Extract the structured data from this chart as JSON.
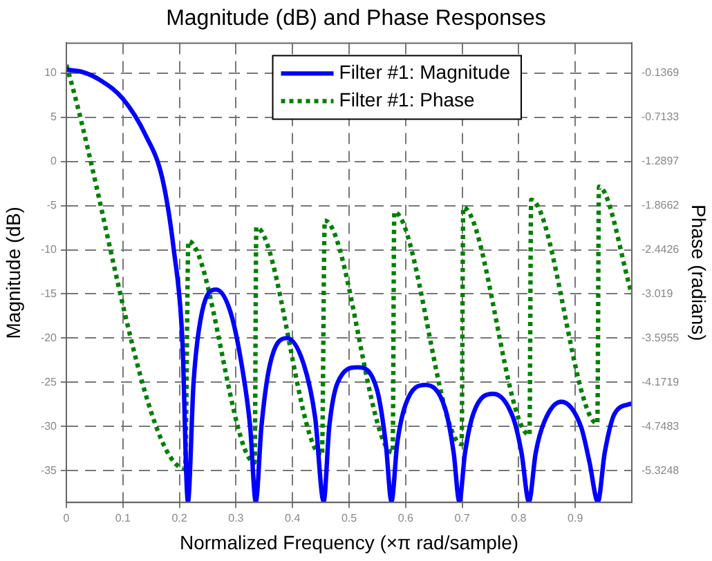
{
  "chart_data": {
    "type": "line",
    "title": "Magnitude (dB) and Phase Responses",
    "xlabel": "Normalized Frequency (×π rad/sample)",
    "ylabel": "Magnitude (dB)",
    "y2label": "Phase (radians)",
    "xlim": [
      0,
      1
    ],
    "xticks": [
      0,
      0.1,
      0.2,
      0.3,
      0.4,
      0.5,
      0.6,
      0.7,
      0.8,
      0.9
    ],
    "ylim": [
      -38.6,
      13.4
    ],
    "yticks": [
      -35,
      -30,
      -25,
      -20,
      -15,
      -10,
      -5,
      0,
      5,
      10
    ],
    "y2lim": [
      -5.74,
      0.255
    ],
    "y2ticks": [
      -5.3248,
      -4.7483,
      -4.1719,
      -3.5955,
      -3.019,
      -2.4426,
      -1.8662,
      -1.2897,
      -0.7133,
      -0.1369
    ],
    "grid": true,
    "legend": "top right",
    "marker": "none",
    "series": [
      {
        "name": "Filter #1: Magnitude",
        "color": "#0000ff",
        "line_style": "solid",
        "x": [
          0,
          0.03,
          0.06,
          0.1,
          0.14,
          0.17,
          0.19,
          0.205,
          0.215,
          0.225,
          0.24,
          0.265,
          0.29,
          0.31,
          0.325,
          0.335,
          0.345,
          0.36,
          0.39,
          0.42,
          0.44,
          0.455,
          0.465,
          0.48,
          0.515,
          0.55,
          0.565,
          0.575,
          0.585,
          0.6,
          0.635,
          0.67,
          0.685,
          0.695,
          0.705,
          0.72,
          0.755,
          0.79,
          0.805,
          0.818,
          0.83,
          0.845,
          0.875,
          0.91,
          0.925,
          0.94,
          0.952,
          0.97,
          1
        ],
        "values": [
          10.4,
          10.1,
          9.2,
          7.1,
          3,
          -2,
          -10,
          -20,
          -38.5,
          -25,
          -17,
          -14.5,
          -17,
          -23,
          -30,
          -38.5,
          -30,
          -23,
          -20,
          -23,
          -29,
          -38.5,
          -30,
          -25,
          -23.3,
          -26,
          -32,
          -38.5,
          -32,
          -27.5,
          -25.3,
          -28,
          -33,
          -38.5,
          -33,
          -28.5,
          -26.3,
          -29,
          -33,
          -38.5,
          -33,
          -29.5,
          -27.2,
          -30,
          -34,
          -38.5,
          -33,
          -28.5,
          -27.4
        ]
      },
      {
        "name": "Filter #1: Phase",
        "color": "#008000",
        "line_style": "dotted",
        "axis": "y2",
        "x": [
          0,
          0.21,
          0.216,
          0.333,
          0.336,
          0.452,
          0.457,
          0.577,
          0.58,
          0.699,
          0.702,
          0.819,
          0.822,
          0.939,
          0.942,
          1
        ],
        "values": [
          -0.03,
          -5.3,
          -2.33,
          -5.22,
          -2.15,
          -5.13,
          -2.06,
          -5.09,
          -1.95,
          -4.98,
          -1.89,
          -4.86,
          -1.79,
          -4.71,
          -1.62,
          -3.02
        ]
      }
    ]
  }
}
